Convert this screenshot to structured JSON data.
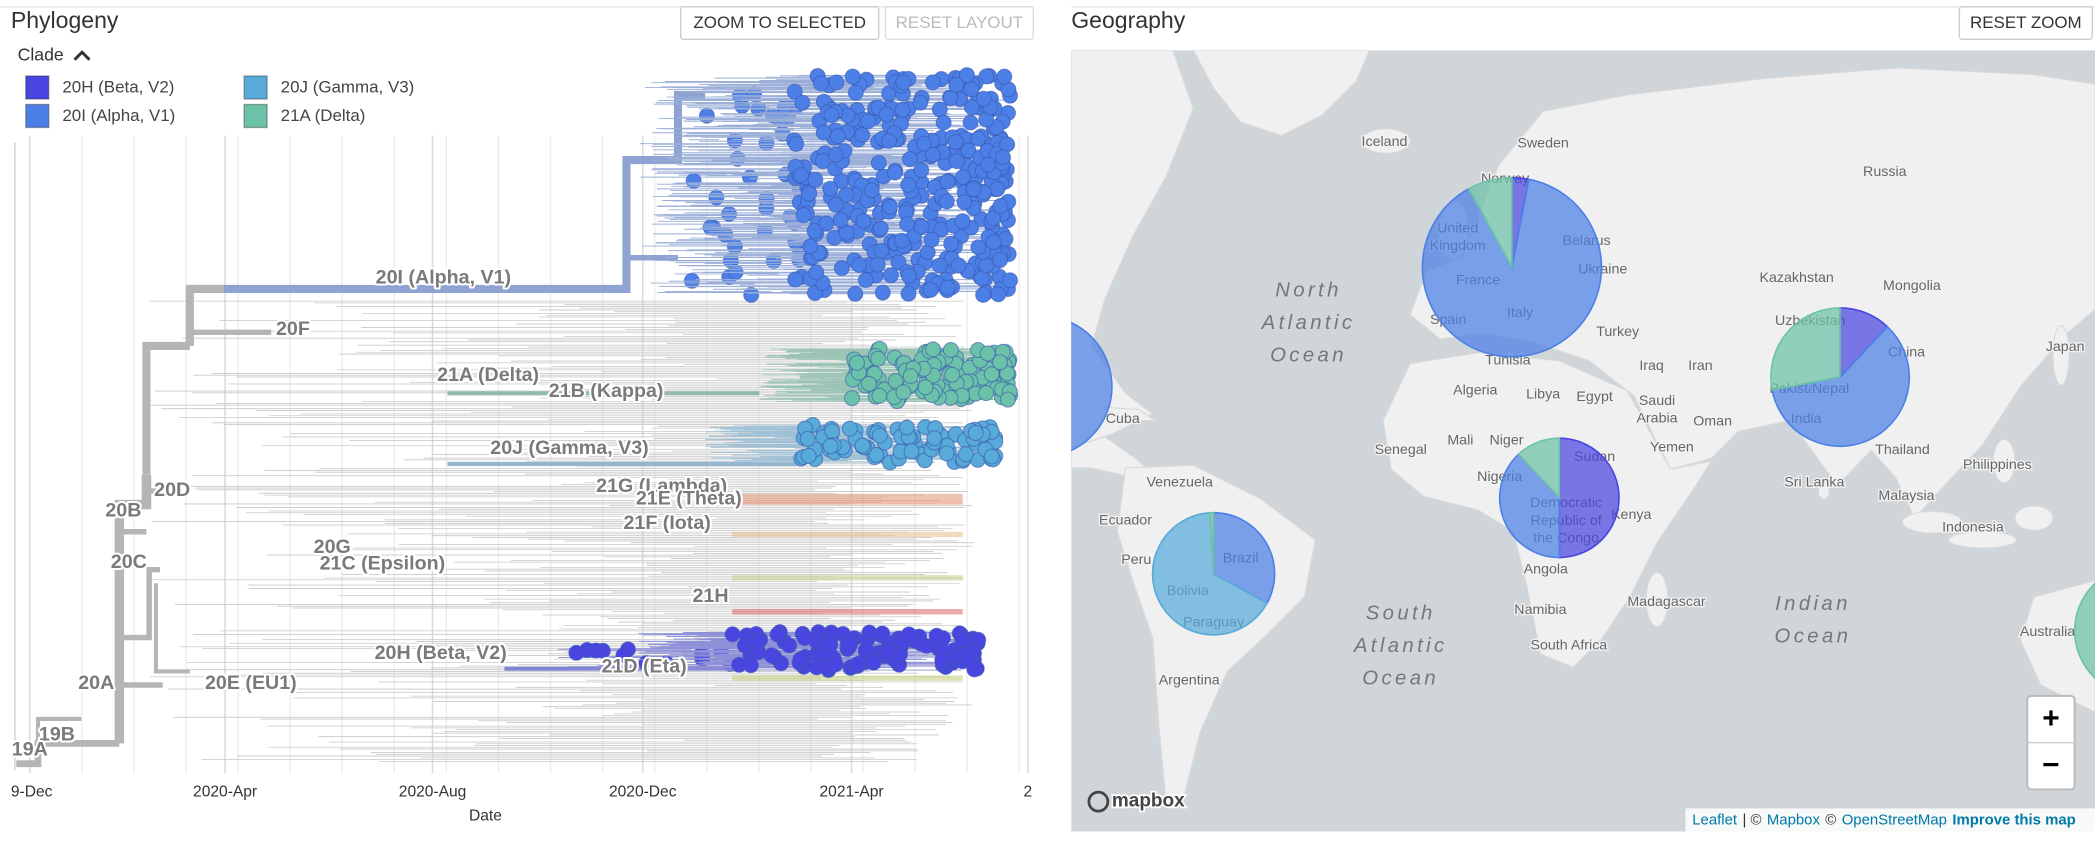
{
  "phylogeny": {
    "title": "Phylogeny",
    "buttons": [
      "ZOOM TO SELECTED",
      "RESET LAYOUT"
    ],
    "legend": {
      "title": "Clade",
      "items": [
        {
          "name": "20H (Beta, V2)",
          "color": "#4a45e0"
        },
        {
          "name": "20I (Alpha, V1)",
          "color": "#4c80e6"
        },
        {
          "name": "20J (Gamma, V3)",
          "color": "#58aad8"
        },
        {
          "name": "21A (Delta)",
          "color": "#6cc2a8"
        }
      ]
    },
    "clade_labels": [
      "20I (Alpha, V1)",
      "20F",
      "21A (Delta)",
      "21B (Kappa)",
      "20J (Gamma, V3)",
      "20D",
      "21G (Lambda)",
      "21E (Theta)",
      "20B",
      "21F (Iota)",
      "20G",
      "20C",
      "21C (Epsilon)",
      "21H",
      "20H (Beta, V2)",
      "21D (Eta)",
      "20A",
      "20E (EU1)",
      "19B",
      "19A"
    ],
    "x_ticks": [
      "9-Dec",
      "2020-Apr",
      "2020-Aug",
      "2020-Dec",
      "2021-Apr",
      "2"
    ],
    "x_label": "Date"
  },
  "geography": {
    "title": "Geography",
    "button": "RESET ZOOM",
    "pies": [
      {
        "values": [
          3,
          89,
          0,
          8
        ]
      },
      {
        "values": [
          12,
          60,
          0,
          28
        ]
      },
      {
        "values": [
          50,
          38,
          0,
          12
        ]
      },
      {
        "values": [
          0,
          33,
          66,
          1
        ]
      },
      {
        "values": [
          0,
          100,
          0,
          0
        ]
      },
      {
        "values": [
          0,
          0,
          0,
          100
        ]
      }
    ],
    "places": [
      "Iceland",
      "Sweden",
      "Norway",
      "Russia",
      "United Kingdom",
      "Belarus",
      "France",
      "Ukraine",
      "Kazakhstan",
      "Mongolia",
      "Spain",
      "Italy",
      "Uzbekistan",
      "Turkey",
      "China",
      "Japan",
      "Tunisia",
      "Iraq",
      "Iran",
      "Pakistan",
      "Nepal",
      "Algeria",
      "Libya",
      "Egypt",
      "Saudi Arabia",
      "India",
      "Oman",
      "Cuba",
      "Senegal",
      "Mali",
      "Niger",
      "Yemen",
      "Thailand",
      "Sudan",
      "Philippines",
      "Nigeria",
      "Venezuela",
      "Sri Lanka",
      "Democratic Republic of the Congo",
      "Kenya",
      "Malaysia",
      "Ecuador",
      "Indonesia",
      "Peru",
      "Brazil",
      "Angola",
      "Bolivia",
      "Madagascar",
      "Paraguay",
      "Namibia",
      "South Africa",
      "Australia",
      "Argentina"
    ],
    "oceans": [
      "North Atlantic Ocean",
      "South Atlantic Ocean",
      "Indian Ocean"
    ],
    "zoom": [
      "+",
      "−"
    ],
    "logo": "mapbox",
    "attribution": [
      "Leaflet",
      "| ©",
      "Mapbox",
      "©",
      "OpenStreetMap",
      "Improve this map"
    ]
  }
}
